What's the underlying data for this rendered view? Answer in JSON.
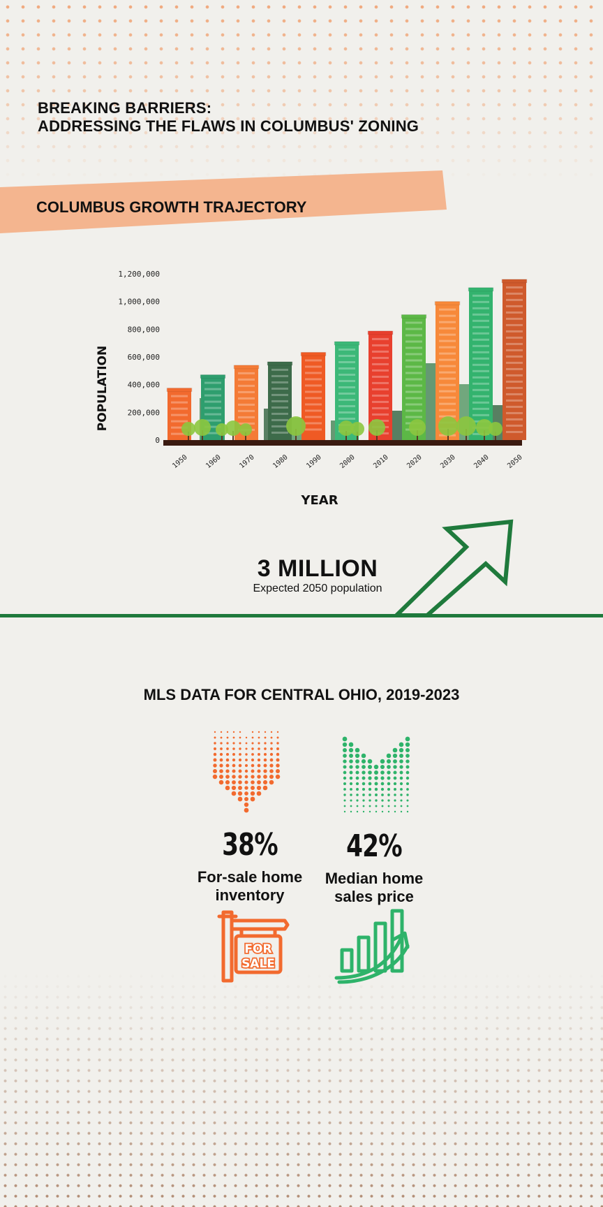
{
  "header": {
    "title_line1": "BREAKING BARRIERS:",
    "title_line2": "ADDRESSING THE FLAWS IN COLUMBUS' ZONING"
  },
  "banner": {
    "label": "COLUMBUS GROWTH TRAJECTORY"
  },
  "chart_data": {
    "type": "bar",
    "title": "COLUMBUS GROWTH TRAJECTORY",
    "xlabel": "YEAR",
    "ylabel": "POPULATION",
    "categories": [
      "1950",
      "1960",
      "1970",
      "1980",
      "1990",
      "2000",
      "2010",
      "2020",
      "2030",
      "2040",
      "2050"
    ],
    "values": [
      375000,
      471000,
      540000,
      565000,
      633000,
      711000,
      787000,
      905000,
      1000000,
      1100000,
      1160000
    ],
    "ylim": [
      0,
      1200000
    ],
    "yticks": [
      0,
      200000,
      400000,
      600000,
      800000,
      1000000,
      1200000
    ],
    "ytick_labels": [
      "0",
      "200,000",
      "400,000",
      "600,000",
      "800,000",
      "1,000,000",
      "1,200,000"
    ],
    "grid": false,
    "colors": {
      "bars": [
        "#f26a2e",
        "#2e9e6e",
        "#f47b36",
        "#3d6b4a",
        "#ef5a24",
        "#3cb878",
        "#e8402e",
        "#5cb846",
        "#f7893a",
        "#33b36e",
        "#cf5a2c"
      ],
      "ground": "#3a1a10",
      "tree": "#8cc63f"
    }
  },
  "projection": {
    "value": "3 MILLION",
    "caption": "Expected 2050 population",
    "color": "#1f7a3c"
  },
  "mls": {
    "title": "MLS DATA FOR CENTRAL OHIO, 2019-2023",
    "stats": [
      {
        "value": "38%",
        "label": "For-sale home\ninventory",
        "color": "#f26a2e",
        "direction": "down",
        "icon": "for-sale-sign-icon",
        "sign_text": "FOR\nSALE"
      },
      {
        "value": "42%",
        "label": "Median home\nsales price",
        "color": "#2eb36a",
        "direction": "up",
        "icon": "rising-bar-chart-icon"
      }
    ]
  }
}
